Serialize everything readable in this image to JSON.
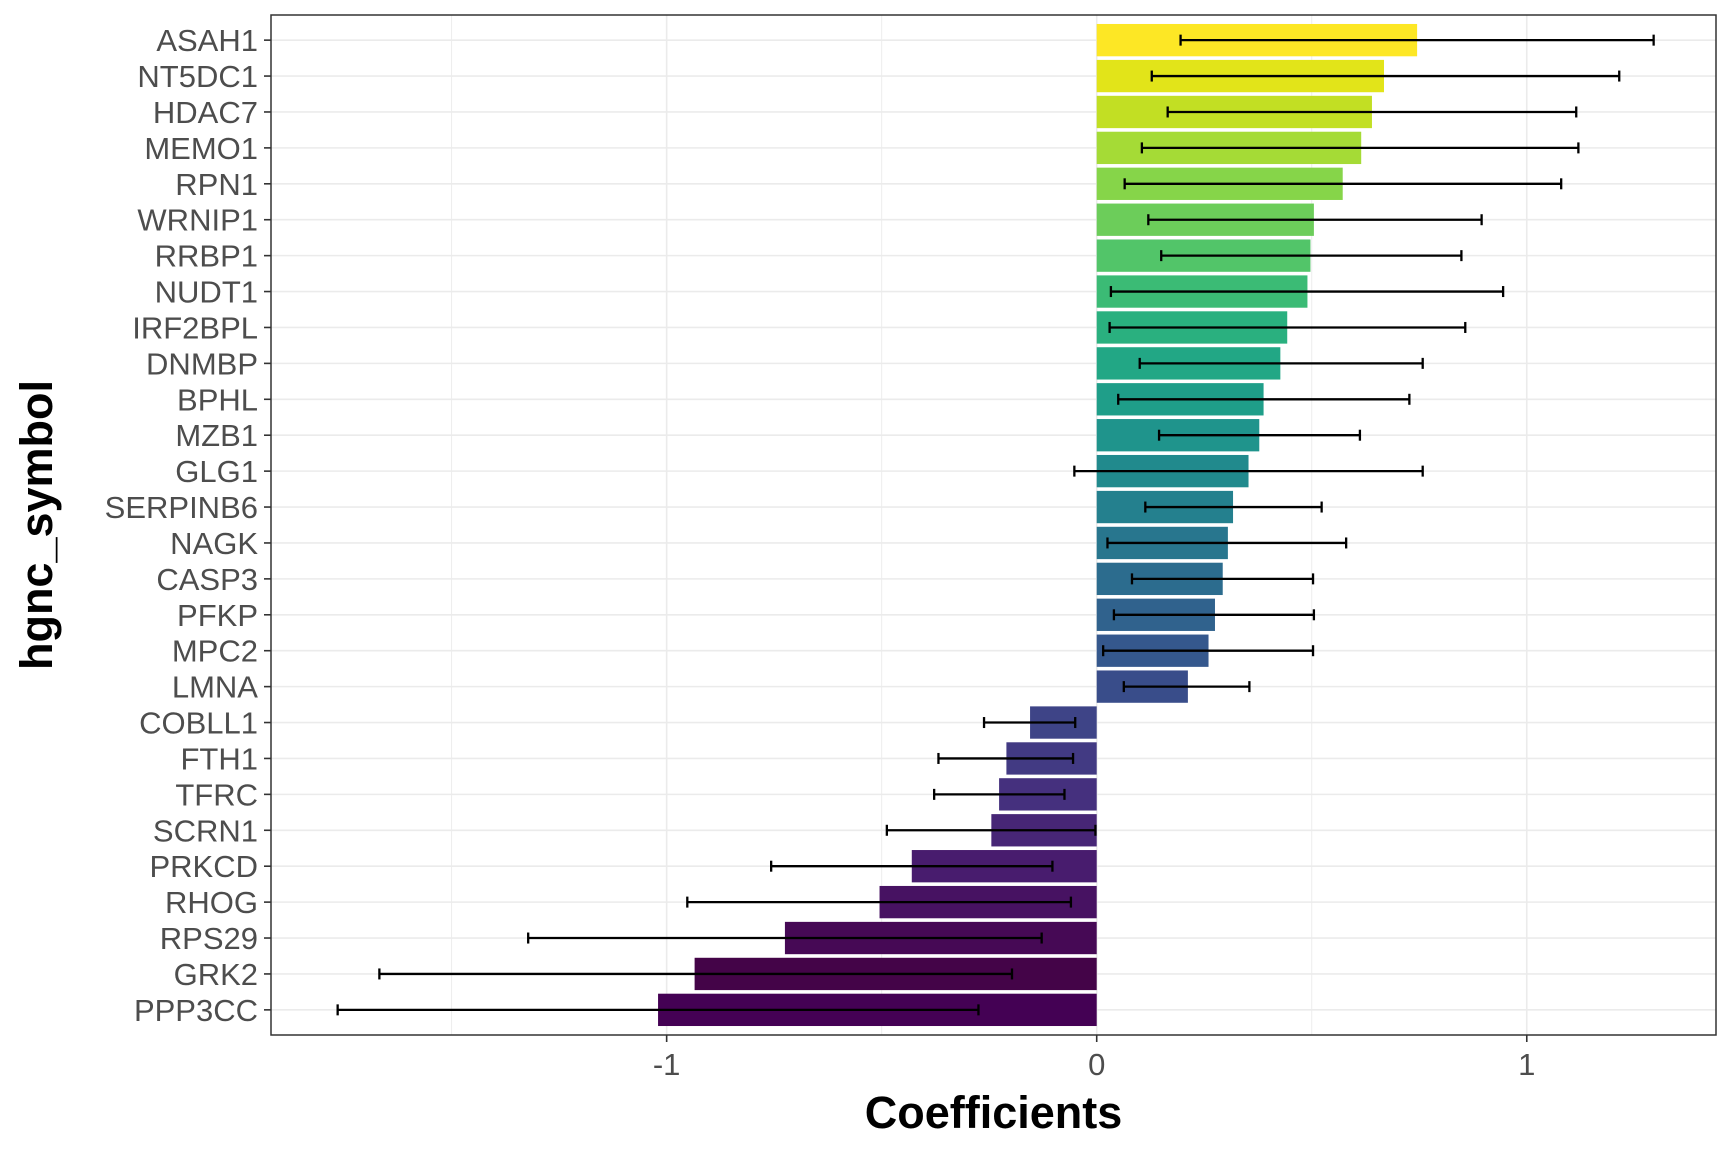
{
  "chart_data": {
    "type": "bar",
    "orientation": "horizontal",
    "xlabel": "Coefficients",
    "ylabel": "hgnc_symbol",
    "xlim": [
      -1.92,
      1.44
    ],
    "x_ticks": [
      -1,
      0,
      1
    ],
    "x_tick_labels": [
      "-1",
      "0",
      "1"
    ],
    "grid": true,
    "legend": "none",
    "colormap": "viridis",
    "bars": [
      {
        "label": "ASAH1",
        "value": 0.745,
        "ci_low": 0.195,
        "ci_high": 1.295,
        "color": "#fde725"
      },
      {
        "label": "NT5DC1",
        "value": 0.668,
        "ci_low": 0.128,
        "ci_high": 1.215,
        "color": "#e2e419"
      },
      {
        "label": "HDAC7",
        "value": 0.64,
        "ci_low": 0.165,
        "ci_high": 1.115,
        "color": "#c2df23"
      },
      {
        "label": "MEMO1",
        "value": 0.615,
        "ci_low": 0.105,
        "ci_high": 1.12,
        "color": "#a5db36"
      },
      {
        "label": "RPN1",
        "value": 0.572,
        "ci_low": 0.065,
        "ci_high": 1.08,
        "color": "#86d549"
      },
      {
        "label": "WRNIP1",
        "value": 0.505,
        "ci_low": 0.12,
        "ci_high": 0.895,
        "color": "#6ccd5a"
      },
      {
        "label": "RRBP1",
        "value": 0.497,
        "ci_low": 0.15,
        "ci_high": 0.848,
        "color": "#52c569"
      },
      {
        "label": "NUDT1",
        "value": 0.49,
        "ci_low": 0.033,
        "ci_high": 0.945,
        "color": "#3bbb75"
      },
      {
        "label": "IRF2BPL",
        "value": 0.443,
        "ci_low": 0.03,
        "ci_high": 0.857,
        "color": "#2ab07f"
      },
      {
        "label": "DNMBP",
        "value": 0.427,
        "ci_low": 0.1,
        "ci_high": 0.758,
        "color": "#22a785"
      },
      {
        "label": "BPHL",
        "value": 0.388,
        "ci_low": 0.05,
        "ci_high": 0.727,
        "color": "#1f9e89"
      },
      {
        "label": "MZB1",
        "value": 0.378,
        "ci_low": 0.145,
        "ci_high": 0.612,
        "color": "#1f948c"
      },
      {
        "label": "GLG1",
        "value": 0.353,
        "ci_low": -0.052,
        "ci_high": 0.758,
        "color": "#218a8d"
      },
      {
        "label": "SERPINB6",
        "value": 0.317,
        "ci_low": 0.113,
        "ci_high": 0.523,
        "color": "#24808e"
      },
      {
        "label": "NAGK",
        "value": 0.305,
        "ci_low": 0.025,
        "ci_high": 0.58,
        "color": "#28768e"
      },
      {
        "label": "CASP3",
        "value": 0.293,
        "ci_low": 0.082,
        "ci_high": 0.503,
        "color": "#2c6c8e"
      },
      {
        "label": "PFKP",
        "value": 0.275,
        "ci_low": 0.04,
        "ci_high": 0.505,
        "color": "#30628d"
      },
      {
        "label": "MPC2",
        "value": 0.26,
        "ci_low": 0.015,
        "ci_high": 0.503,
        "color": "#35588d"
      },
      {
        "label": "LMNA",
        "value": 0.212,
        "ci_low": 0.063,
        "ci_high": 0.355,
        "color": "#394d8a"
      },
      {
        "label": "COBLL1",
        "value": -0.155,
        "ci_low": -0.262,
        "ci_high": -0.05,
        "color": "#3e4487"
      },
      {
        "label": "FTH1",
        "value": -0.21,
        "ci_low": -0.368,
        "ci_high": -0.055,
        "color": "#423a83"
      },
      {
        "label": "TFRC",
        "value": -0.227,
        "ci_low": -0.378,
        "ci_high": -0.075,
        "color": "#45307e"
      },
      {
        "label": "SCRN1",
        "value": -0.245,
        "ci_low": -0.488,
        "ci_high": -0.003,
        "color": "#472676"
      },
      {
        "label": "PRKCD",
        "value": -0.43,
        "ci_low": -0.757,
        "ci_high": -0.103,
        "color": "#481c6e"
      },
      {
        "label": "RHOG",
        "value": -0.505,
        "ci_low": -0.952,
        "ci_high": -0.06,
        "color": "#471262"
      },
      {
        "label": "RPS29",
        "value": -0.725,
        "ci_low": -1.322,
        "ci_high": -0.128,
        "color": "#460955"
      },
      {
        "label": "GRK2",
        "value": -0.935,
        "ci_low": -1.668,
        "ci_high": -0.197,
        "color": "#440448"
      },
      {
        "label": "PPP3CC",
        "value": -1.02,
        "ci_low": -1.765,
        "ci_high": -0.275,
        "color": "#440154"
      }
    ]
  }
}
